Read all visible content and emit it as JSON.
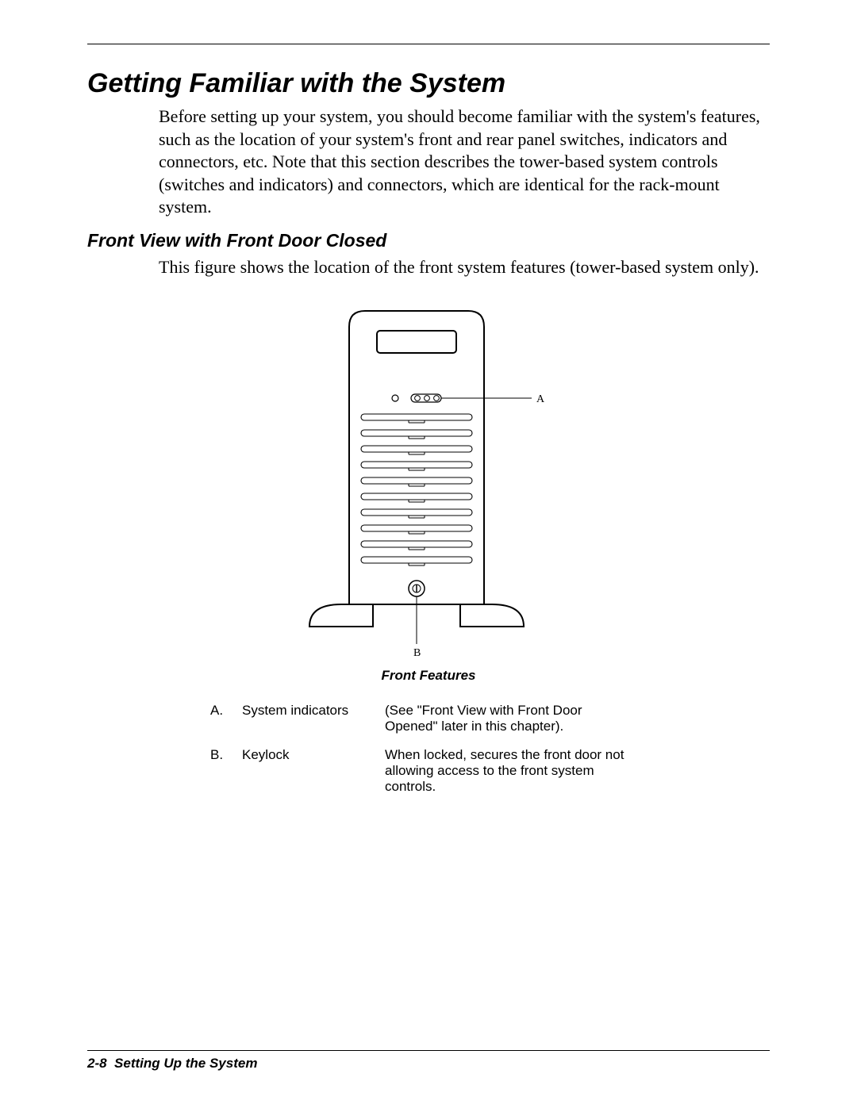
{
  "page": {
    "title": "Getting Familiar with the System",
    "intro": "Before setting up your system, you should become familiar with the system's features, such as the location of your system's front and rear panel switches, indicators and connectors, etc. Note that this section describes the tower-based system controls (switches and indicators) and connectors, which are identical for the rack-mount system.",
    "subhead": "Front View with Front Door Closed",
    "subintro": "This figure shows the location of the front system features (tower-based system only).",
    "caption": "Front Features",
    "footer_page": "2-8",
    "footer_text": "Setting Up the System"
  },
  "diagram": {
    "label_a": "A",
    "label_b": "B",
    "stroke": "#000000",
    "fill": "#ffffff",
    "slot_count": 10,
    "indicator_count": 4,
    "label_font_family": "Times New Roman",
    "label_font_size": 14
  },
  "features": [
    {
      "letter": "A.",
      "name": "System indicators",
      "desc": "(See \"Front View with Front Door Opened\" later in this chapter)."
    },
    {
      "letter": "B.",
      "name": "Keylock",
      "desc": "When locked, secures the front door not allowing access to the front system controls."
    }
  ]
}
